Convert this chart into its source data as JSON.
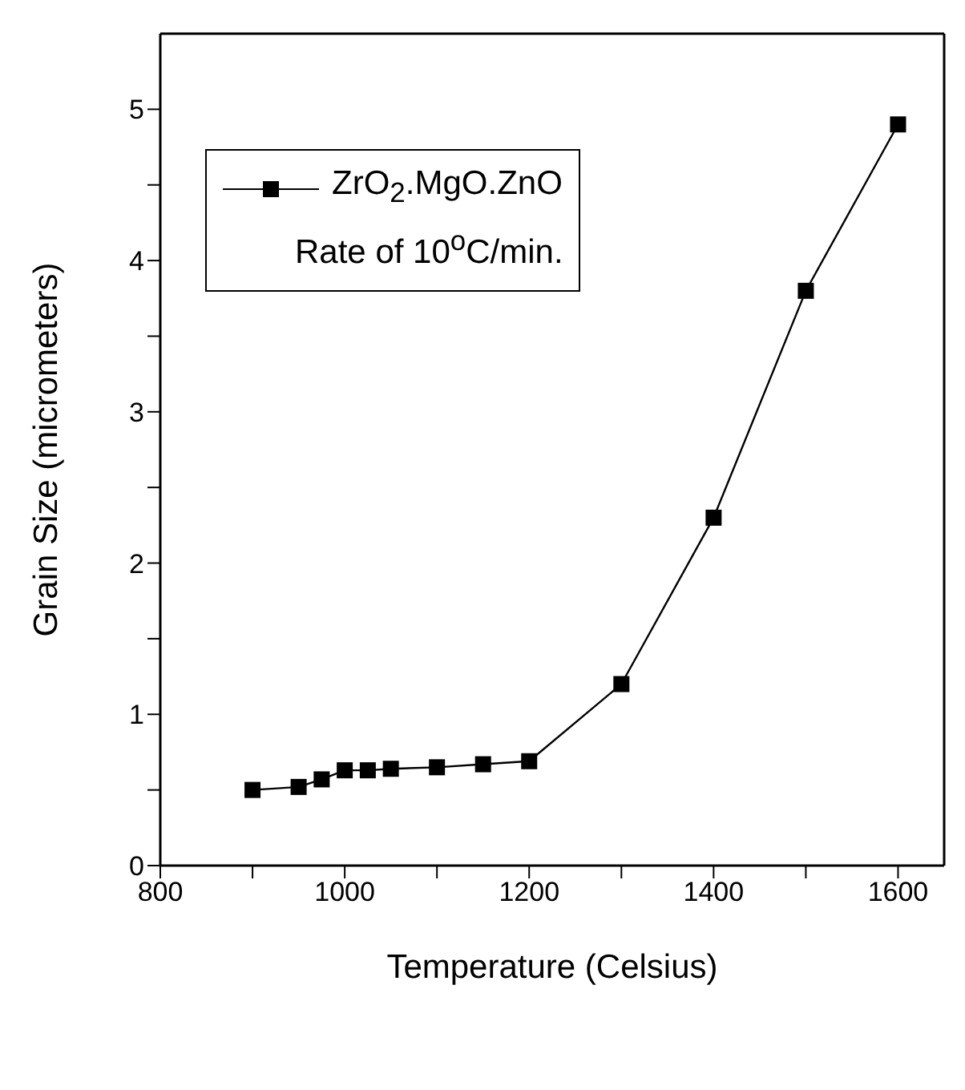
{
  "chart_data": {
    "type": "line",
    "xlabel": "Temperature (Celsius)",
    "ylabel": "Grain Size (micrometers)",
    "x": [
      900,
      950,
      975,
      1000,
      1025,
      1050,
      1100,
      1150,
      1200,
      1300,
      1400,
      1500,
      1600
    ],
    "series": [
      {
        "name": "ZrO$_{2}$.MgO.ZnO",
        "color": "#000000",
        "values": [
          0.5,
          0.52,
          0.57,
          0.63,
          0.63,
          0.64,
          0.65,
          0.67,
          0.69,
          1.2,
          2.3,
          3.8,
          4.9
        ]
      }
    ],
    "annotations": [
      "Rate of 10$^{o}$C/min."
    ],
    "xlim": [
      800,
      1650
    ],
    "xticks": [
      800,
      {
        "value": 900,
        "label": null
      },
      1000,
      {
        "value": 1100,
        "label": null
      },
      1200,
      {
        "value": 1300,
        "label": null
      },
      1400,
      {
        "value": 1500,
        "label": null
      },
      1600
    ],
    "ylim": [
      0,
      5.5
    ],
    "yticks": [
      0,
      {
        "value": 0.5,
        "label": null
      },
      1,
      {
        "value": 1.5,
        "label": null
      },
      2,
      {
        "value": 2.5,
        "label": null
      },
      3,
      {
        "value": 3.5,
        "label": null
      },
      4,
      {
        "value": 4.5,
        "label": null
      },
      5
    ],
    "marker": "square",
    "line_style": "solid",
    "legend": "top left",
    "grid": false
  }
}
